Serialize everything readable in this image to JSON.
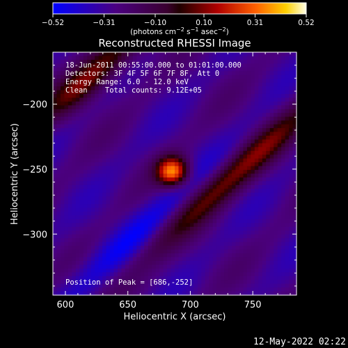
{
  "chart_data": {
    "type": "heatmap",
    "title": "Reconstructed RHESSI Image",
    "xlabel": "Heliocentric X (arcsec)",
    "ylabel": "Heliocentric Y (arcsec)",
    "xlim": [
      590,
      785
    ],
    "ylim": [
      -347,
      -160
    ],
    "xticks": [
      600,
      650,
      700,
      750
    ],
    "xtick_labels": [
      "600",
      "650",
      "700",
      "750"
    ],
    "yticks": [
      -200,
      -250,
      -300
    ],
    "ytick_labels": [
      "−200",
      "−250",
      "−300"
    ],
    "colorbar": {
      "label_text": "(photons cm",
      "label_sup1": "−2",
      "label_mid": " s",
      "label_sup2": "−1",
      "label_mid2": " asec",
      "label_sup3": "−2",
      "label_end": ")",
      "range": [
        -0.52,
        0.52
      ],
      "ticks": [
        -0.52,
        -0.31,
        -0.1,
        0.1,
        0.31,
        0.52
      ],
      "tick_labels": [
        "−0.52",
        "−0.31",
        "−0.10",
        "0.10",
        "0.31",
        "0.52"
      ]
    },
    "annotations": {
      "time_range": "18-Jun-2011 00:55:00.000 to 01:01:00.000",
      "detectors": "Detectors: 3F 4F 5F 6F 7F 8F, Att 0",
      "energy": "Energy Range: 6.0 - 12.0 keV",
      "clean": "Clean    Total counts: 9.12E+05",
      "peak": "Position of Peak = [686,-252]"
    },
    "peak": {
      "x": 686,
      "y": -252,
      "value": 0.52
    },
    "features": [
      {
        "kind": "source",
        "x": 686,
        "y": -252,
        "amp": 0.62,
        "sx": 9,
        "sy": 8
      },
      {
        "kind": "ridge",
        "x": 710,
        "y": -275,
        "amp": 0.22,
        "along": 70,
        "across": 9,
        "angle_deg": 40
      },
      {
        "kind": "ridge",
        "x": 752,
        "y": -238,
        "amp": 0.18,
        "along": 60,
        "across": 9,
        "angle_deg": 40
      },
      {
        "kind": "ridge",
        "x": 615,
        "y": -185,
        "amp": 0.24,
        "along": 35,
        "across": 9,
        "angle_deg": 40
      },
      {
        "kind": "ridge",
        "x": 640,
        "y": -162,
        "amp": 0.16,
        "along": 40,
        "across": 10,
        "angle_deg": 40
      },
      {
        "kind": "ridge",
        "x": 660,
        "y": -300,
        "amp": -0.2,
        "along": 60,
        "across": 10,
        "angle_deg": 40
      }
    ]
  },
  "footer": {
    "timestamp": "12-May-2022 02:22"
  }
}
